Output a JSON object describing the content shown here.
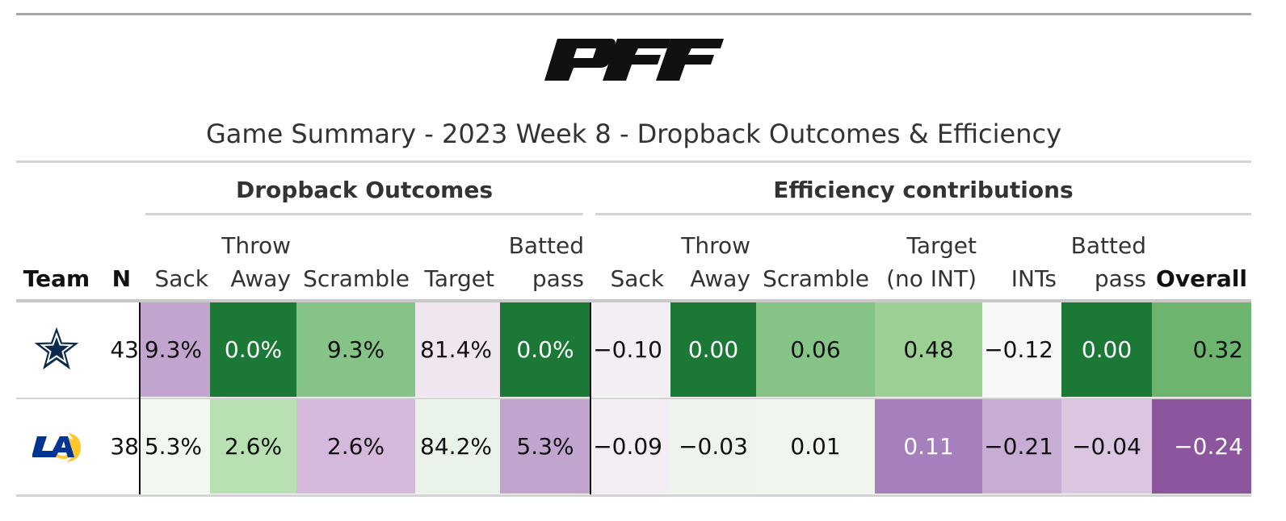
{
  "title": "Game Summary - 2023 Week 8 - Dropback Outcomes & Efficiency",
  "logo_text": "PFF",
  "spanners": {
    "outcomes": "Dropback Outcomes",
    "efficiency": "Efficiency contributions"
  },
  "columns": {
    "team": "Team",
    "n": "N",
    "sack": "Sack",
    "throw_away": "Throw\nAway",
    "scramble": "Scramble",
    "target": "Target",
    "batted_pass": "Batted\npass",
    "eff_sack": "Sack",
    "eff_throw_away": "Throw\nAway",
    "eff_scramble": "Scramble",
    "eff_target": "Target\n(no INT)",
    "eff_ints": "INTs",
    "eff_batted_pass": "Batted\npass",
    "overall": "Overall"
  },
  "rows": [
    {
      "team_icon": "cowboys-star-icon",
      "n": "43",
      "sack": "9.3%",
      "throw_away": "0.0%",
      "scramble": "9.3%",
      "target": "81.4%",
      "batted_pass": "0.0%",
      "eff_sack": "−0.10",
      "eff_throw_away": "0.00",
      "eff_scramble": "0.06",
      "eff_target": "0.48",
      "eff_ints": "−0.12",
      "eff_batted_pass": "0.00",
      "overall": "0.32",
      "colors": {
        "sack": "#c2a5cf",
        "throw_away": "#1b7837",
        "scramble": "#86c386",
        "target": "#efe6f0",
        "batted_pass": "#1b7837",
        "eff_sack": "#f3edf4",
        "eff_throw_away": "#1b7837",
        "eff_scramble": "#86c386",
        "eff_target": "#9bcf93",
        "eff_ints": "#f7f7f7",
        "eff_batted_pass": "#1b7837",
        "overall": "#6db46f"
      }
    },
    {
      "team_icon": "rams-la-icon",
      "n": "38",
      "sack": "5.3%",
      "throw_away": "2.6%",
      "scramble": "2.6%",
      "target": "84.2%",
      "batted_pass": "5.3%",
      "eff_sack": "−0.09",
      "eff_throw_away": "−0.03",
      "eff_scramble": "0.01",
      "eff_target": "0.11",
      "eff_ints": "−0.21",
      "eff_batted_pass": "−0.04",
      "overall": "−0.24",
      "colors": {
        "sack": "#f3f7f1",
        "throw_away": "#b8e0b2",
        "scramble": "#d4b9dc",
        "target": "#eaf3e9",
        "batted_pass": "#c2a5cf",
        "eff_sack": "#f3edf4",
        "eff_throw_away": "#eef4ec",
        "eff_scramble": "#f0f5ee",
        "eff_target": "#a680bc",
        "eff_ints": "#c7acd4",
        "eff_batted_pass": "#dac6e0",
        "overall": "#8c559e"
      }
    }
  ]
}
